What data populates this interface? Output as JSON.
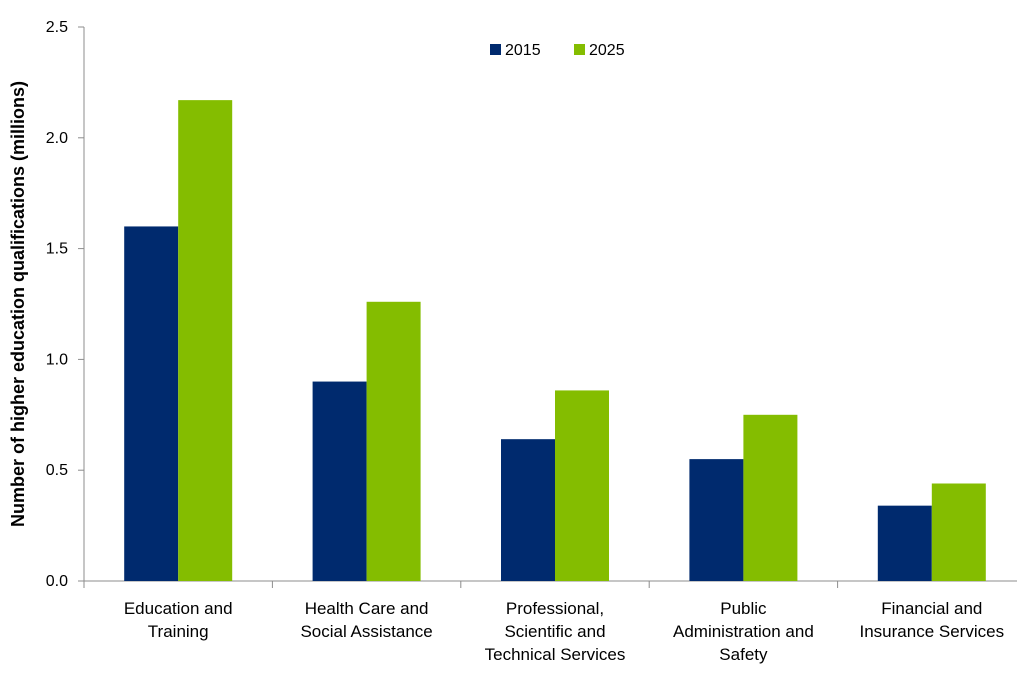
{
  "chart_data": {
    "type": "bar",
    "title": "",
    "xlabel": "",
    "ylabel": "Number of higher education qualifications (millions)",
    "ylim": [
      0,
      2.5
    ],
    "yticks": [
      "0.0",
      "0.5",
      "1.0",
      "1.5",
      "2.0",
      "2.5"
    ],
    "ytick_values": [
      0,
      0.5,
      1.0,
      1.5,
      2.0,
      2.5
    ],
    "grid": false,
    "legend_position": "top-center",
    "categories": [
      [
        "Education and",
        "Training"
      ],
      [
        "Health Care and",
        "Social Assistance"
      ],
      [
        "Professional,",
        "Scientific and",
        "Technical Services"
      ],
      [
        "Public",
        "Administration and",
        "Safety"
      ],
      [
        "Financial and",
        "Insurance Services"
      ]
    ],
    "series": [
      {
        "name": "2015",
        "color": "#002A6E",
        "values": [
          1.6,
          0.9,
          0.64,
          0.55,
          0.34
        ]
      },
      {
        "name": "2025",
        "color": "#84BD00",
        "values": [
          2.17,
          1.26,
          0.86,
          0.75,
          0.44
        ]
      }
    ]
  }
}
